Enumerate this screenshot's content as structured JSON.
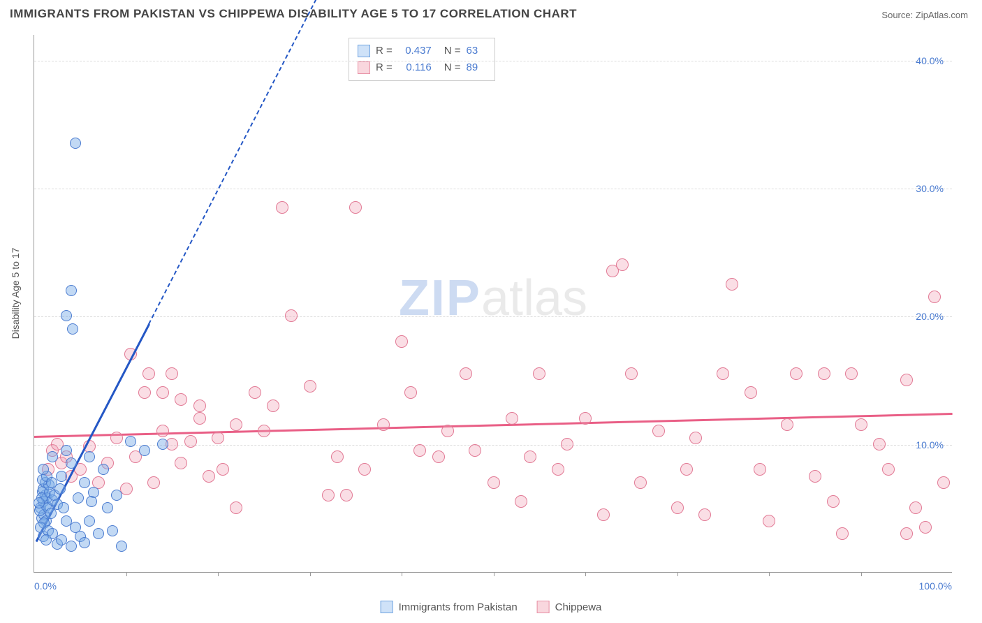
{
  "title": "IMMIGRANTS FROM PAKISTAN VS CHIPPEWA DISABILITY AGE 5 TO 17 CORRELATION CHART",
  "source_label": "Source:",
  "source_site": "ZipAtlas.com",
  "ylabel": "Disability Age 5 to 17",
  "watermark_a": "ZIP",
  "watermark_b": "atlas",
  "axes": {
    "xlim": [
      0,
      100
    ],
    "ylim": [
      0,
      42
    ],
    "x_ticks_major": [
      0,
      100
    ],
    "x_ticks_minor": [
      10,
      20,
      30,
      40,
      50,
      60,
      70,
      80,
      90
    ],
    "x_tick_labels": {
      "0": "0.0%",
      "100": "100.0%"
    },
    "y_gridlines": [
      10,
      20,
      30,
      40
    ],
    "y_tick_labels": {
      "10": "10.0%",
      "20": "20.0%",
      "30": "30.0%",
      "40": "40.0%"
    },
    "grid_color": "#dddddd",
    "axis_color": "#999999",
    "tick_label_color": "#4a7bd0"
  },
  "stats": [
    {
      "r": "0.437",
      "n": "63",
      "swatch_fill": "#cfe2f8",
      "swatch_border": "#6fa3e0"
    },
    {
      "r": "0.116",
      "n": "89",
      "swatch_fill": "#f9d7de",
      "swatch_border": "#e890a5"
    }
  ],
  "series": [
    {
      "name": "Immigrants from Pakistan",
      "marker_fill": "rgba(120,170,230,0.45)",
      "marker_border": "#4a7bd0",
      "marker_radius": 8,
      "swatch_fill": "#cfe2f8",
      "swatch_border": "#6fa3e0",
      "trend": {
        "color": "#2457c5",
        "solid_from": [
          0.2,
          2.5
        ],
        "solid_to": [
          12.5,
          19.5
        ],
        "dashed_to": [
          38,
          55
        ],
        "line_width": 3
      },
      "points": [
        [
          0.7,
          5.0
        ],
        [
          0.8,
          4.2
        ],
        [
          1.0,
          5.5
        ],
        [
          1.2,
          6.0
        ],
        [
          1.3,
          5.2
        ],
        [
          0.9,
          6.3
        ],
        [
          1.1,
          4.5
        ],
        [
          1.4,
          5.8
        ],
        [
          0.6,
          4.8
        ],
        [
          1.5,
          5.0
        ],
        [
          1.0,
          6.5
        ],
        [
          0.8,
          5.8
        ],
        [
          1.2,
          7.0
        ],
        [
          1.7,
          6.2
        ],
        [
          0.5,
          5.4
        ],
        [
          1.3,
          4.0
        ],
        [
          1.6,
          6.8
        ],
        [
          0.9,
          7.2
        ],
        [
          2.0,
          5.6
        ],
        [
          1.1,
          3.8
        ],
        [
          1.4,
          7.5
        ],
        [
          1.8,
          4.6
        ],
        [
          2.2,
          6.0
        ],
        [
          0.7,
          3.5
        ],
        [
          1.0,
          2.8
        ],
        [
          2.5,
          5.3
        ],
        [
          1.5,
          3.2
        ],
        [
          1.9,
          7.0
        ],
        [
          1.0,
          8.0
        ],
        [
          2.8,
          6.5
        ],
        [
          2.0,
          3.0
        ],
        [
          1.3,
          2.5
        ],
        [
          2.5,
          2.2
        ],
        [
          3.0,
          2.5
        ],
        [
          3.5,
          4.0
        ],
        [
          4.0,
          2.0
        ],
        [
          3.2,
          5.0
        ],
        [
          4.5,
          3.5
        ],
        [
          5.0,
          2.8
        ],
        [
          4.8,
          5.8
        ],
        [
          5.5,
          2.3
        ],
        [
          6.0,
          4.0
        ],
        [
          6.5,
          6.2
        ],
        [
          7.0,
          3.0
        ],
        [
          6.2,
          5.5
        ],
        [
          8.0,
          5.0
        ],
        [
          8.5,
          3.2
        ],
        [
          9.0,
          6.0
        ],
        [
          9.5,
          2.0
        ],
        [
          5.5,
          7.0
        ],
        [
          4.0,
          8.5
        ],
        [
          7.5,
          8.0
        ],
        [
          6.0,
          9.0
        ],
        [
          10.5,
          10.2
        ],
        [
          3.5,
          9.5
        ],
        [
          4.5,
          33.5
        ],
        [
          4.0,
          22.0
        ],
        [
          3.5,
          20.0
        ],
        [
          4.2,
          19.0
        ],
        [
          2.0,
          9.0
        ],
        [
          3.0,
          7.5
        ],
        [
          12.0,
          9.5
        ],
        [
          14.0,
          10.0
        ]
      ]
    },
    {
      "name": "Chippewa",
      "marker_fill": "rgba(240,160,180,0.35)",
      "marker_border": "#e27a95",
      "marker_radius": 9,
      "swatch_fill": "#f9d7de",
      "swatch_border": "#e890a5",
      "trend": {
        "color": "#e95f86",
        "solid_from": [
          0,
          10.7
        ],
        "solid_to": [
          100,
          12.5
        ],
        "line_width": 3
      },
      "points": [
        [
          1.5,
          8.0
        ],
        [
          2.0,
          9.5
        ],
        [
          2.5,
          10.0
        ],
        [
          3.0,
          8.5
        ],
        [
          3.5,
          9.0
        ],
        [
          4.0,
          7.5
        ],
        [
          5.0,
          8.0
        ],
        [
          6.0,
          9.8
        ],
        [
          7.0,
          7.0
        ],
        [
          8.0,
          8.5
        ],
        [
          9.0,
          10.5
        ],
        [
          10.0,
          6.5
        ],
        [
          11.0,
          9.0
        ],
        [
          12.0,
          14.0
        ],
        [
          13.0,
          7.0
        ],
        [
          14.0,
          11.0
        ],
        [
          15.0,
          10.0
        ],
        [
          16.0,
          8.5
        ],
        [
          17.0,
          10.2
        ],
        [
          18.0,
          12.0
        ],
        [
          19.0,
          7.5
        ],
        [
          10.5,
          17.0
        ],
        [
          12.5,
          15.5
        ],
        [
          14.0,
          14.0
        ],
        [
          15.0,
          15.5
        ],
        [
          16.0,
          13.5
        ],
        [
          18.0,
          13.0
        ],
        [
          20.0,
          10.5
        ],
        [
          22.0,
          11.5
        ],
        [
          20.5,
          8.0
        ],
        [
          24.0,
          14.0
        ],
        [
          25.0,
          11.0
        ],
        [
          22.0,
          5.0
        ],
        [
          26.0,
          13.0
        ],
        [
          28.0,
          20.0
        ],
        [
          30.0,
          14.5
        ],
        [
          27.0,
          28.5
        ],
        [
          32.0,
          6.0
        ],
        [
          33.0,
          9.0
        ],
        [
          35.0,
          28.5
        ],
        [
          34.0,
          6.0
        ],
        [
          36.0,
          8.0
        ],
        [
          38.0,
          11.5
        ],
        [
          40.0,
          18.0
        ],
        [
          42.0,
          9.5
        ],
        [
          41.0,
          14.0
        ],
        [
          44.0,
          9.0
        ],
        [
          45.0,
          11.0
        ],
        [
          47.0,
          15.5
        ],
        [
          48.0,
          9.5
        ],
        [
          50.0,
          7.0
        ],
        [
          52.0,
          12.0
        ],
        [
          54.0,
          9.0
        ],
        [
          53.0,
          5.5
        ],
        [
          55.0,
          15.5
        ],
        [
          57.0,
          8.0
        ],
        [
          58.0,
          10.0
        ],
        [
          60.0,
          12.0
        ],
        [
          62.0,
          4.5
        ],
        [
          63.0,
          23.5
        ],
        [
          64.0,
          24.0
        ],
        [
          65.0,
          15.5
        ],
        [
          66.0,
          7.0
        ],
        [
          68.0,
          11.0
        ],
        [
          70.0,
          5.0
        ],
        [
          71.0,
          8.0
        ],
        [
          72.0,
          10.5
        ],
        [
          75.0,
          15.5
        ],
        [
          76.0,
          22.5
        ],
        [
          78.0,
          14.0
        ],
        [
          79.0,
          8.0
        ],
        [
          80.0,
          4.0
        ],
        [
          82.0,
          11.5
        ],
        [
          83.0,
          15.5
        ],
        [
          85.0,
          7.5
        ],
        [
          87.0,
          5.5
        ],
        [
          88.0,
          3.0
        ],
        [
          89.0,
          15.5
        ],
        [
          90.0,
          11.5
        ],
        [
          92.0,
          10.0
        ],
        [
          93.0,
          8.0
        ],
        [
          95.0,
          15.0
        ],
        [
          96.0,
          5.0
        ],
        [
          97.0,
          3.5
        ],
        [
          98.0,
          21.5
        ],
        [
          99.0,
          7.0
        ],
        [
          95.0,
          3.0
        ],
        [
          86.0,
          15.5
        ],
        [
          73.0,
          4.5
        ]
      ]
    }
  ],
  "legend_items": [
    {
      "label": "Immigrants from Pakistan",
      "fill": "#cfe2f8",
      "border": "#6fa3e0"
    },
    {
      "label": "Chippewa",
      "fill": "#f9d7de",
      "border": "#e890a5"
    }
  ]
}
